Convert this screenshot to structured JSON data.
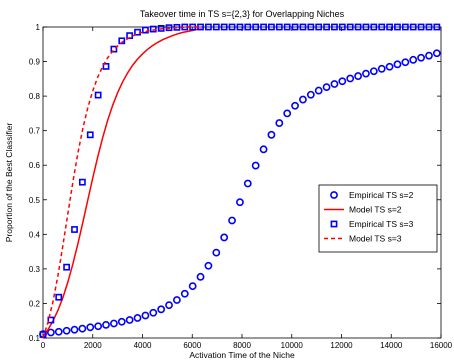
{
  "chart_data": {
    "type": "line",
    "title": "Takeover time in TS s={2,3} for Overlapping Niches",
    "xlabel": "Activation Time of the Niche",
    "ylabel": "Proportion of the Best Classifier",
    "xlim": [
      0,
      16000
    ],
    "ylim": [
      0.1,
      1
    ],
    "xticks": [
      0,
      2000,
      4000,
      6000,
      8000,
      10000,
      12000,
      14000,
      16000
    ],
    "yticks": [
      0.1,
      0.2,
      0.3,
      0.4,
      0.5,
      0.6,
      0.7,
      0.8,
      0.9,
      1
    ],
    "xtick_labels": [
      "0",
      "2000",
      "4000",
      "6000",
      "8000",
      "10000",
      "12000",
      "14000",
      "16000"
    ],
    "ytick_labels": [
      "0.1",
      "0.2",
      "0.3",
      "0.4",
      "0.5",
      "0.6",
      "0.7",
      "0.8",
      "0.9",
      "1"
    ],
    "grid": false,
    "legend_position": "right",
    "series": [
      {
        "name": "Empirical TS s=2",
        "style": "circle-markers",
        "color": "#0000ff",
        "x": [
          0,
          317,
          633,
          950,
          1267,
          1583,
          1900,
          2217,
          2533,
          2850,
          3167,
          3483,
          3800,
          4117,
          4433,
          4750,
          5067,
          5383,
          5700,
          6017,
          6333,
          6650,
          6967,
          7283,
          7600,
          7917,
          8233,
          8550,
          8867,
          9183,
          9500,
          9817,
          10133,
          10450,
          10767,
          11083,
          11400,
          11717,
          12033,
          12350,
          12667,
          12983,
          13300,
          13617,
          13933,
          14250,
          14567,
          14883,
          15200,
          15517,
          15833
        ],
        "y": [
          0.111,
          0.116,
          0.118,
          0.121,
          0.124,
          0.127,
          0.131,
          0.134,
          0.138,
          0.142,
          0.147,
          0.152,
          0.158,
          0.165,
          0.173,
          0.183,
          0.195,
          0.21,
          0.228,
          0.25,
          0.277,
          0.309,
          0.347,
          0.391,
          0.44,
          0.493,
          0.547,
          0.599,
          0.646,
          0.688,
          0.722,
          0.75,
          0.772,
          0.79,
          0.804,
          0.816,
          0.826,
          0.835,
          0.843,
          0.851,
          0.858,
          0.865,
          0.872,
          0.879,
          0.885,
          0.892,
          0.898,
          0.905,
          0.911,
          0.917,
          0.924
        ]
      },
      {
        "name": "Model TS s=2",
        "style": "solid-line",
        "color": "#ff0000",
        "x": [
          0,
          200,
          400,
          600,
          800,
          1000,
          1200,
          1400,
          1600,
          1800,
          2000,
          2200,
          2400,
          2600,
          2800,
          3000,
          3200,
          3400,
          3600,
          3800,
          4000,
          4200,
          4400,
          4600,
          4800,
          5000,
          5200,
          5400,
          5600,
          5800,
          6000,
          6200,
          6400
        ],
        "y": [
          0.105,
          0.124,
          0.149,
          0.18,
          0.217,
          0.262,
          0.314,
          0.372,
          0.434,
          0.499,
          0.563,
          0.624,
          0.68,
          0.73,
          0.773,
          0.81,
          0.841,
          0.867,
          0.889,
          0.907,
          0.922,
          0.935,
          0.946,
          0.955,
          0.963,
          0.969,
          0.975,
          0.98,
          0.984,
          0.987,
          0.99,
          0.993,
          0.994
        ]
      },
      {
        "name": "Empirical TS s=3",
        "style": "square-markers",
        "color": "#0000ff",
        "x": [
          0,
          317,
          633,
          950,
          1267,
          1583,
          1900,
          2217,
          2533,
          2850,
          3167,
          3483,
          3800,
          4117,
          4433,
          4750,
          5067,
          5383,
          5700,
          6017,
          6333,
          6650,
          6967,
          7283,
          7600,
          7917,
          8233,
          8550,
          8867,
          9183,
          9500,
          9817,
          10133,
          10450,
          10767,
          11083,
          11400,
          11717,
          12033,
          12350,
          12667,
          12983,
          13300,
          13617,
          13933,
          14250,
          14567,
          14883,
          15200,
          15517,
          15833
        ],
        "y": [
          0.11,
          0.152,
          0.218,
          0.305,
          0.414,
          0.551,
          0.688,
          0.803,
          0.886,
          0.936,
          0.96,
          0.975,
          0.985,
          0.991,
          0.994,
          0.996,
          0.998,
          0.999,
          1,
          1,
          1,
          1,
          1,
          1,
          1,
          1,
          1,
          1,
          1,
          1,
          1,
          1,
          1,
          1,
          1,
          1,
          1,
          1,
          1,
          1,
          1,
          1,
          1,
          1,
          1,
          1,
          1,
          1,
          1,
          1,
          1
        ]
      },
      {
        "name": "Model TS s=3",
        "style": "dashed-line",
        "color": "#ff0000",
        "x": [
          0,
          200,
          400,
          600,
          800,
          1000,
          1200,
          1400,
          1600,
          1800,
          2000,
          2200,
          2400,
          2600,
          2800,
          3000,
          3200,
          3400,
          3600,
          3800,
          4000,
          4200,
          4400,
          4600,
          4800,
          5000,
          5200,
          5400,
          5600,
          5800,
          6000,
          6200,
          6400
        ],
        "y": [
          0.1,
          0.145,
          0.205,
          0.28,
          0.368,
          0.46,
          0.551,
          0.634,
          0.706,
          0.766,
          0.815,
          0.855,
          0.886,
          0.911,
          0.93,
          0.945,
          0.957,
          0.966,
          0.974,
          0.98,
          0.985,
          0.988,
          0.991,
          0.993,
          0.995,
          0.996,
          0.997,
          0.998,
          0.999,
          1,
          1,
          1,
          1
        ]
      }
    ]
  }
}
